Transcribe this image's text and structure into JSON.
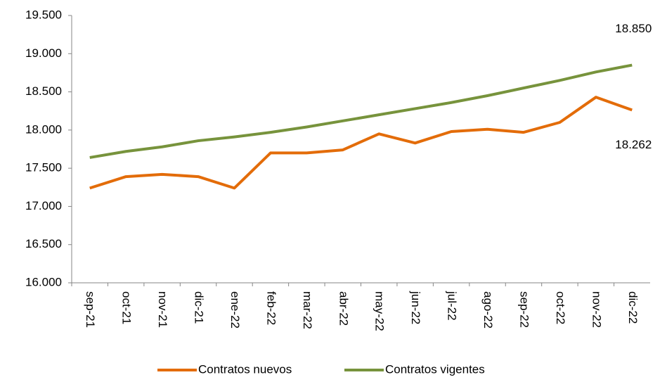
{
  "chart_data": {
    "type": "line",
    "categories": [
      "sep-21",
      "oct-21",
      "nov-21",
      "dic-21",
      "ene-22",
      "feb-22",
      "mar-22",
      "abr-22",
      "may-22",
      "jun-22",
      "jul-22",
      "ago-22",
      "sep-22",
      "oct-22",
      "nov-22",
      "dic-22"
    ],
    "series": [
      {
        "name": "Contratos nuevos",
        "color": "#e36c09",
        "values": [
          17240,
          17390,
          17420,
          17390,
          17240,
          17700,
          17700,
          17740,
          17950,
          17830,
          17980,
          18010,
          17970,
          18100,
          18430,
          18262
        ],
        "value_labels": [
          null,
          null,
          null,
          null,
          null,
          null,
          null,
          null,
          null,
          null,
          null,
          null,
          null,
          null,
          null,
          "18.262"
        ]
      },
      {
        "name": "Contratos vigentes",
        "color": "#77933c",
        "values": [
          17640,
          17720,
          17780,
          17860,
          17910,
          17970,
          18040,
          18120,
          18200,
          18280,
          18360,
          18450,
          18550,
          18650,
          18760,
          18850
        ],
        "value_labels": [
          null,
          null,
          null,
          null,
          null,
          null,
          null,
          null,
          null,
          null,
          null,
          null,
          null,
          null,
          null,
          "18.850"
        ]
      }
    ],
    "ylim": [
      16000,
      19500
    ],
    "yticks": [
      {
        "value": 16000,
        "label": "16.000"
      },
      {
        "value": 16500,
        "label": "16.500"
      },
      {
        "value": 17000,
        "label": "17.000"
      },
      {
        "value": 17500,
        "label": "17.500"
      },
      {
        "value": 18000,
        "label": "18.000"
      },
      {
        "value": 18500,
        "label": "18.500"
      },
      {
        "value": 19000,
        "label": "19.000"
      },
      {
        "value": 19500,
        "label": "19.500"
      }
    ],
    "grid": false,
    "legend": "bottom"
  }
}
